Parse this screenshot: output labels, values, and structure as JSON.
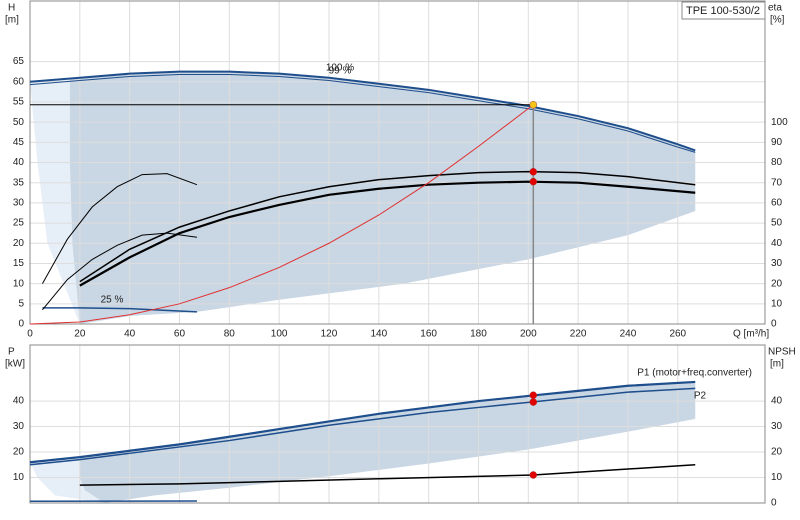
{
  "chart_data": [
    {
      "type": "line",
      "title": "TPE 100-530/2",
      "ylabel": "H",
      "yunit": "[m]",
      "y2label": "eta",
      "y2unit": "[%]",
      "xlabel": "Q [m³/h]",
      "xlim": [
        0,
        295
      ],
      "xticks": [
        0,
        20,
        40,
        60,
        80,
        100,
        120,
        140,
        160,
        180,
        200,
        220,
        240,
        260
      ],
      "ylim": [
        0,
        80
      ],
      "yticks": [
        0,
        5,
        10,
        15,
        20,
        25,
        30,
        35,
        40,
        45,
        50,
        55,
        60,
        65
      ],
      "y2lim": [
        0,
        160
      ],
      "y2ticks": [
        0,
        10,
        20,
        30,
        40,
        50,
        60,
        70,
        80,
        90,
        100
      ],
      "grid": true,
      "show_xtick_labels": true,
      "areas": [
        {
          "color": "#e6eef7",
          "x": [
            0,
            16,
            16,
            17,
            20,
            7,
            3
          ],
          "values": [
            60,
            60.8,
            40,
            20,
            0,
            20,
            40
          ]
        },
        {
          "color": "#c9d6e3",
          "x": [
            16,
            20,
            40,
            67,
            100,
            150,
            200,
            240,
            267,
            267,
            240,
            200,
            150,
            100,
            67,
            40,
            20,
            17,
            16
          ],
          "values": [
            60.8,
            61,
            62,
            62.6,
            62,
            58.8,
            54,
            48.5,
            43,
            28,
            22,
            16,
            10,
            6,
            3,
            2,
            0,
            20,
            40
          ]
        }
      ],
      "series": [
        {
          "name": "100 %",
          "color": "#1f4e8c",
          "width": 2,
          "x": [
            0,
            20,
            40,
            60,
            80,
            100,
            120,
            140,
            160,
            180,
            200,
            220,
            240,
            260,
            267
          ],
          "values": [
            60,
            61,
            62,
            62.5,
            62.5,
            62,
            61,
            59.5,
            58,
            56,
            54,
            51.5,
            48.5,
            44.5,
            43
          ]
        },
        {
          "name": "99 %",
          "color": "#1f4e8c",
          "width": 1,
          "x": [
            0,
            20,
            40,
            60,
            80,
            100,
            120,
            140,
            160,
            180,
            200,
            220,
            240,
            260,
            267
          ],
          "values": [
            59.3,
            60.3,
            61.3,
            61.8,
            61.8,
            61.3,
            60.3,
            58.8,
            57.3,
            55.3,
            53.3,
            50.8,
            47.8,
            43.8,
            42.5
          ]
        },
        {
          "name": "25 %",
          "color": "#1f4e8c",
          "width": 1.5,
          "x": [
            5,
            20,
            40,
            67
          ],
          "values": [
            4,
            4,
            3.8,
            3
          ]
        },
        {
          "color": "#000",
          "width": 1.5,
          "axis": "y2",
          "x": [
            20,
            40,
            60,
            80,
            100,
            120,
            140,
            160,
            180,
            200,
            220,
            240,
            267
          ],
          "values": [
            21,
            37,
            48,
            56,
            63,
            68,
            71.5,
            73.5,
            75,
            75.5,
            75,
            73,
            69
          ]
        },
        {
          "color": "#000",
          "width": 2.2,
          "axis": "y2",
          "x": [
            20,
            40,
            60,
            80,
            100,
            120,
            140,
            160,
            180,
            200,
            220,
            240,
            267
          ],
          "values": [
            19,
            33,
            45,
            53,
            59,
            64,
            67,
            69,
            70,
            70.5,
            70,
            68,
            65
          ]
        },
        {
          "color": "#000",
          "width": 1,
          "axis": "y2",
          "x": [
            5,
            15,
            25,
            35,
            45,
            55,
            67
          ],
          "values": [
            20,
            42,
            58,
            68,
            74,
            74.5,
            69
          ]
        },
        {
          "color": "#000",
          "width": 1,
          "axis": "y2",
          "x": [
            5,
            15,
            25,
            35,
            45,
            55,
            67
          ],
          "values": [
            7,
            22,
            32,
            39,
            44,
            45,
            43
          ]
        },
        {
          "color": "#e03030",
          "width": 1,
          "x": [
            0,
            20,
            40,
            60,
            80,
            100,
            120,
            140,
            160,
            180,
            202
          ],
          "values": [
            0,
            0.5,
            2.3,
            5,
            9,
            14,
            20,
            27,
            35,
            44,
            54.3
          ]
        },
        {
          "color": "#000",
          "width": 1,
          "x": [
            0,
            202
          ],
          "values": [
            54.3,
            54.3
          ]
        },
        {
          "color": "#888",
          "width": 1.5,
          "x": [
            202,
            202
          ],
          "values": [
            0,
            54.3
          ]
        }
      ],
      "points": [
        {
          "x": 202,
          "y": 54.3,
          "color": "#f5c518"
        },
        {
          "x": 202,
          "y": 75.4,
          "axis": "y2",
          "color": "#e00000"
        },
        {
          "x": 202,
          "y": 70.5,
          "axis": "y2",
          "color": "#e00000"
        }
      ]
    },
    {
      "type": "line",
      "ylabel": "P",
      "yunit": "[kW]",
      "y2label": "NPSH",
      "y2unit": "[m]",
      "xlim": [
        0,
        295
      ],
      "xticks": [
        0,
        20,
        40,
        60,
        80,
        100,
        120,
        140,
        160,
        180,
        200,
        220,
        240,
        260
      ],
      "ylim": [
        0,
        62
      ],
      "yticks": [
        10,
        20,
        30,
        40
      ],
      "y2lim": [
        0,
        62
      ],
      "y2ticks": [
        0,
        10,
        20,
        30,
        40
      ],
      "grid": true,
      "show_xtick_labels": false,
      "areas": [
        {
          "color": "#e6eef7",
          "x": [
            0,
            20,
            20,
            22,
            30,
            10,
            3
          ],
          "values": [
            16,
            18,
            10,
            5,
            0,
            3,
            10
          ]
        },
        {
          "color": "#c9d6e3",
          "x": [
            20,
            40,
            60,
            80,
            100,
            120,
            140,
            160,
            180,
            200,
            220,
            240,
            267,
            267,
            240,
            200,
            160,
            120,
            80,
            50,
            30,
            22,
            20
          ],
          "values": [
            18,
            20.5,
            23,
            26,
            29,
            32,
            35,
            37.5,
            40,
            42,
            44,
            46,
            47.5,
            33,
            28,
            21,
            15.5,
            10.5,
            6,
            3,
            0,
            5,
            10
          ]
        }
      ],
      "series": [
        {
          "name": "P1 (motor+freq.converter)",
          "color": "#1f4e8c",
          "width": 2.2,
          "x": [
            0,
            20,
            40,
            60,
            80,
            100,
            120,
            140,
            160,
            180,
            200,
            220,
            240,
            267
          ],
          "values": [
            16,
            18,
            20.5,
            23,
            26,
            29,
            32,
            35,
            37.5,
            40,
            42,
            44,
            46,
            47.5
          ]
        },
        {
          "name": "P2",
          "color": "#1f4e8c",
          "width": 1.5,
          "x": [
            0,
            20,
            40,
            60,
            80,
            100,
            120,
            140,
            160,
            180,
            200,
            220,
            240,
            267
          ],
          "values": [
            15,
            17,
            19.5,
            22,
            24.5,
            27.5,
            30.5,
            33,
            35.5,
            37.5,
            39.5,
            41.5,
            43.5,
            45
          ]
        },
        {
          "color": "#000",
          "width": 1.5,
          "axis": "y2",
          "x": [
            20,
            60,
            100,
            140,
            202,
            267
          ],
          "values": [
            7,
            7.5,
            8.5,
            9.5,
            11,
            15
          ]
        },
        {
          "color": "#1f4e8c",
          "width": 1.5,
          "x": [
            0,
            67
          ],
          "values": [
            0.7,
            0.8
          ]
        }
      ],
      "points": [
        {
          "x": 202,
          "y": 42.3,
          "color": "#e00000"
        },
        {
          "x": 202,
          "y": 39.6,
          "color": "#e00000"
        },
        {
          "x": 202,
          "y": 11,
          "axis": "y2",
          "color": "#e00000"
        }
      ]
    }
  ]
}
